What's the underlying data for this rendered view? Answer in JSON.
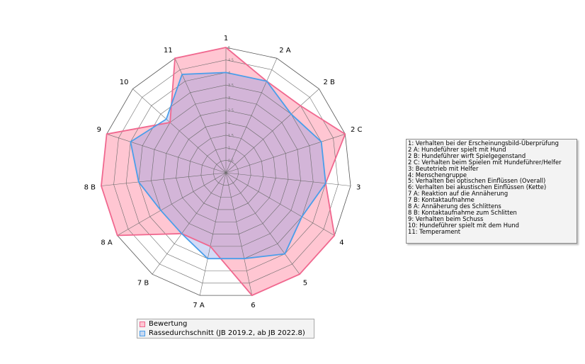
{
  "chart_data": {
    "type": "radar",
    "axes": [
      "1",
      "2 A",
      "2 B",
      "2 C",
      "3",
      "4",
      "5",
      "6",
      "7 A",
      "7 B",
      "8 A",
      "8 B",
      "9",
      "10",
      "11"
    ],
    "rlim": [
      0,
      5
    ],
    "ticks": [
      "0.5",
      "1",
      "1.5",
      "2",
      "2.5",
      "3",
      "3.5",
      "4",
      "4.5",
      "5"
    ],
    "series": [
      {
        "name": "Bewertung",
        "values": [
          5,
          4,
          4,
          5,
          4,
          5,
          5,
          5,
          3,
          3,
          5,
          5,
          5,
          3,
          5
        ],
        "color": "#f0688f",
        "fill": "#ffc6d2"
      },
      {
        "name": "Rassedurchschnitt (JB 2019.2, ab JB 2022.8)",
        "values": [
          4,
          4,
          3.5,
          4,
          4,
          3.5,
          4,
          3.5,
          3.5,
          3,
          3,
          3.5,
          4,
          3.2,
          4.3
        ],
        "color": "#4a9eea",
        "fill": "rgba(130,150,230,0.35)"
      }
    ],
    "legend_position": "bottom",
    "grid": true
  },
  "legend_lines": [
    "1: Verhalten bei der Erscheinungsbild-Überprüfung",
    "2 A: Hundeführer spielt mit Hund",
    "2 B: Hundeführer wirft Spielgegenstand",
    "2 C: Verhalten beim Spielen mit Hundeführer/Helfer",
    "3: Beutetrieb mit Helfer",
    "4: Menschengruppe",
    "5: Verhalten bei optischen Einflüssen (Overall)",
    "6: Verhalten bei akustischen Einflüssen (Kette)",
    "7 A: Reaktion auf die Annäherung",
    "7 B: Kontaktaufnahme",
    "8 A: Annäherung des Schlittens",
    "8 B: Kontaktaufnahme zum Schlitten",
    "9: Verhalten beim Schuss",
    "10: Hundeführer spielt mit dem Hund",
    "11: Temperament"
  ]
}
